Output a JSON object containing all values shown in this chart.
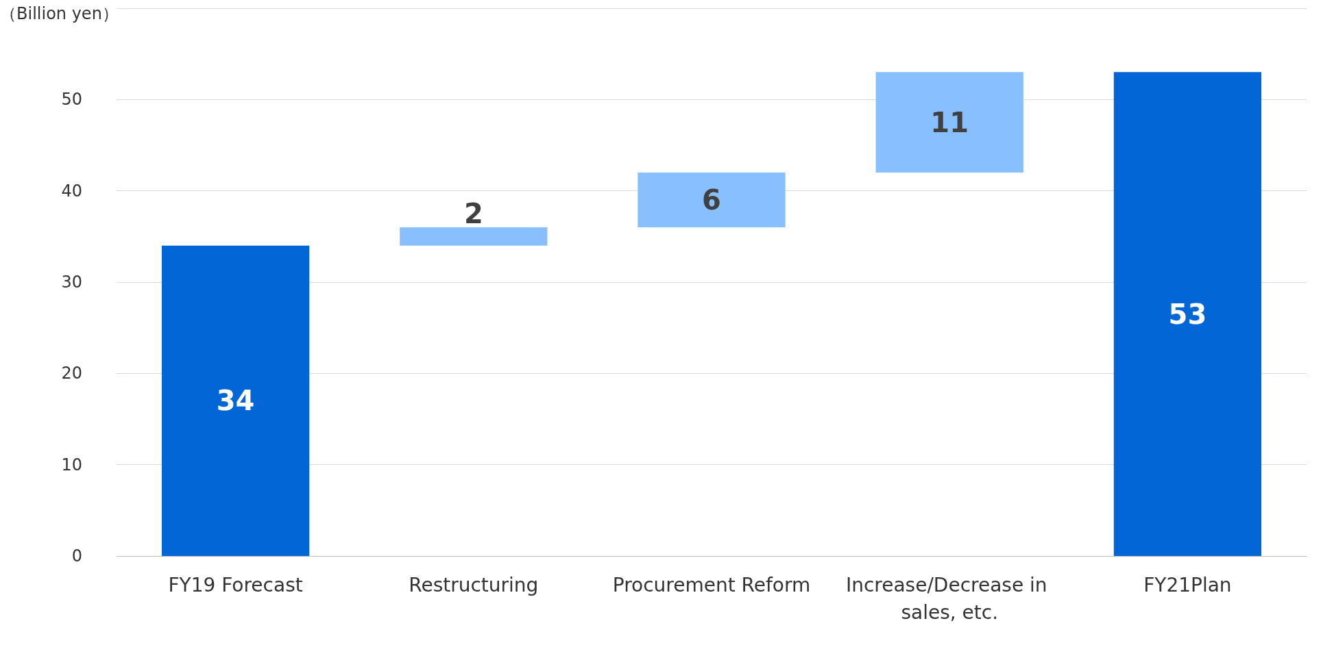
{
  "chart_data": {
    "type": "bar",
    "ylabel": "（Billion yen）",
    "categories": [
      "FY19 Forecast",
      "Restructuring",
      "Procurement Reform",
      "Increase/Decrease in sales, etc.",
      "FY21Plan"
    ],
    "values": [
      34,
      2,
      6,
      11,
      53
    ],
    "base": [
      0,
      34,
      36,
      42,
      0
    ],
    "colors": [
      "#0366d6",
      "#87bfff",
      "#87bfff",
      "#87bfff",
      "#0366d6"
    ],
    "ylim": [
      0,
      60
    ],
    "yticks": [
      0,
      10,
      20,
      30,
      40,
      50,
      {
        "value": 60,
        "label": null
      }
    ],
    "grid": "y",
    "data_labels": true
  }
}
